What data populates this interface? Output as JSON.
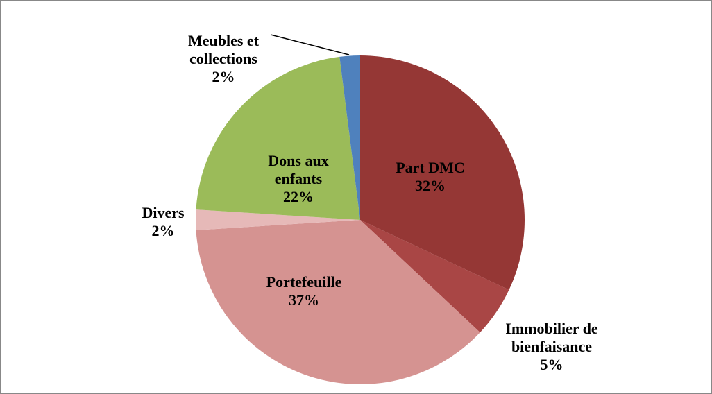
{
  "chart_data": {
    "type": "pie",
    "categories": [
      "Part DMC",
      "Immobilier de bienfaisance",
      "Portefeuille",
      "Divers",
      "Dons aux enfants",
      "Meubles et collections"
    ],
    "values": [
      32,
      5,
      37,
      2,
      22,
      2
    ],
    "value_labels": [
      "32%",
      "5%",
      "37%",
      "2%",
      "22%",
      "2%"
    ],
    "colors": [
      "#953735",
      "#a94645",
      "#d59391",
      "#e6b9b8",
      "#9bbb59",
      "#4f81bd"
    ]
  }
}
